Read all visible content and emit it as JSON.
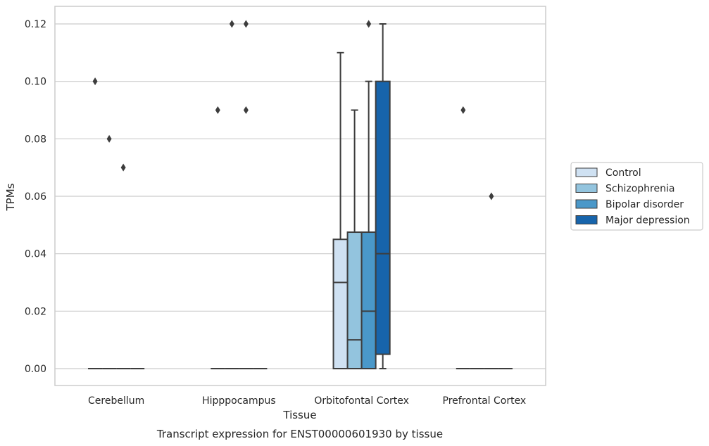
{
  "caption": "Transcript expression for ENST00000601930 by tissue",
  "chart_data": {
    "type": "boxplot",
    "xlabel": "Tissue",
    "ylabel": "TPMs",
    "ylim": [
      -0.006,
      0.126
    ],
    "yticks": [
      0.0,
      0.02,
      0.04,
      0.06,
      0.08,
      0.1,
      0.12
    ],
    "ytick_labels": [
      "0.00",
      "0.02",
      "0.04",
      "0.06",
      "0.08",
      "0.10",
      "0.12"
    ],
    "grid": "horizontal",
    "legend_position": "right",
    "categories": [
      "Cerebellum",
      "Hipppocampus",
      "Orbitofontal Cortex",
      "Prefrontal Cortex"
    ],
    "series": [
      {
        "name": "Control",
        "color": "#cfe1f2",
        "boxes": [
          {
            "q1": 0,
            "median": 0,
            "q3": 0,
            "whisker_low": 0,
            "whisker_high": 0,
            "outliers": [
              0.1
            ]
          },
          {
            "q1": 0,
            "median": 0,
            "q3": 0,
            "whisker_low": 0,
            "whisker_high": 0,
            "outliers": [
              0.09
            ]
          },
          {
            "q1": 0,
            "median": 0.03,
            "q3": 0.045,
            "whisker_low": 0,
            "whisker_high": 0.11,
            "outliers": []
          },
          {
            "q1": 0,
            "median": 0,
            "q3": 0,
            "whisker_low": 0,
            "whisker_high": 0,
            "outliers": [
              0.09
            ]
          }
        ]
      },
      {
        "name": "Schizophrenia",
        "color": "#93c4de",
        "boxes": [
          {
            "q1": 0,
            "median": 0,
            "q3": 0,
            "whisker_low": 0,
            "whisker_high": 0,
            "outliers": [
              0.08
            ]
          },
          {
            "q1": 0,
            "median": 0,
            "q3": 0,
            "whisker_low": 0,
            "whisker_high": 0,
            "outliers": [
              0.12
            ]
          },
          {
            "q1": 0,
            "median": 0.01,
            "q3": 0.0475,
            "whisker_low": 0,
            "whisker_high": 0.09,
            "outliers": []
          },
          {
            "q1": 0,
            "median": 0,
            "q3": 0,
            "whisker_low": 0,
            "whisker_high": 0,
            "outliers": []
          }
        ]
      },
      {
        "name": "Bipolar disorder",
        "color": "#4a98c9",
        "boxes": [
          {
            "q1": 0,
            "median": 0,
            "q3": 0,
            "whisker_low": 0,
            "whisker_high": 0,
            "outliers": [
              0.07
            ]
          },
          {
            "q1": 0,
            "median": 0,
            "q3": 0,
            "whisker_low": 0,
            "whisker_high": 0,
            "outliers": [
              0.12,
              0.09
            ]
          },
          {
            "q1": 0,
            "median": 0.02,
            "q3": 0.0475,
            "whisker_low": 0,
            "whisker_high": 0.1,
            "outliers": [
              0.12
            ]
          },
          {
            "q1": 0,
            "median": 0,
            "q3": 0,
            "whisker_low": 0,
            "whisker_high": 0,
            "outliers": [
              0.06
            ]
          }
        ]
      },
      {
        "name": "Major depression",
        "color": "#1764ab",
        "boxes": [
          {
            "q1": 0,
            "median": 0,
            "q3": 0,
            "whisker_low": 0,
            "whisker_high": 0,
            "outliers": []
          },
          {
            "q1": 0,
            "median": 0,
            "q3": 0,
            "whisker_low": 0,
            "whisker_high": 0,
            "outliers": []
          },
          {
            "q1": 0.005,
            "median": 0.04,
            "q3": 0.1,
            "whisker_low": 0,
            "whisker_high": 0.12,
            "outliers": []
          },
          {
            "q1": 0,
            "median": 0,
            "q3": 0,
            "whisker_low": 0,
            "whisker_high": 0,
            "outliers": []
          }
        ]
      }
    ]
  }
}
